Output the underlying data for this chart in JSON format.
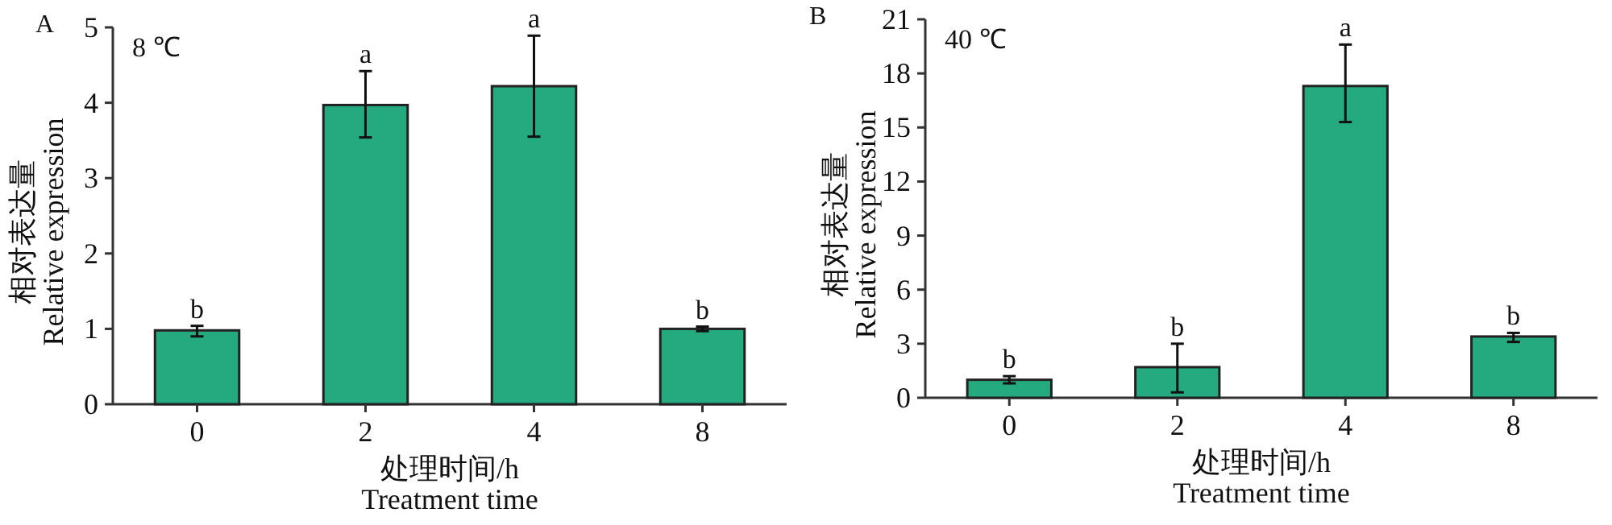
{
  "chart_data": [
    {
      "type": "bar",
      "title": "A",
      "xlabel": "处理时间/h\nTreatment time",
      "ylabel": "相对表达量\nRelative expression",
      "categories": [
        "0",
        "2",
        "4",
        "8"
      ],
      "values": [
        0.98,
        3.97,
        4.22,
        1.0
      ],
      "errors": [
        [
          0.9,
          1.04
        ],
        [
          3.54,
          4.42
        ],
        [
          3.55,
          4.89
        ],
        [
          0.97,
          1.03
        ]
      ],
      "color": "#25a97f",
      "ylim": [
        0,
        5
      ],
      "yticks": [
        0,
        1,
        2,
        3,
        4,
        5
      ],
      "annotations": [
        "8 ℃",
        {
          "text": "b",
          "x": "0",
          "y": 1.04
        },
        {
          "text": "a",
          "x": "2",
          "y": 4.42
        },
        {
          "text": "a",
          "x": "4",
          "y": 4.89
        },
        {
          "text": "b",
          "x": "8",
          "y": 1.03
        }
      ]
    },
    {
      "type": "bar",
      "title": "B",
      "xlabel": "处理时间/h\nTreatment time",
      "ylabel": "相对表达量\nRelative expression",
      "categories": [
        "0",
        "2",
        "4",
        "8"
      ],
      "values": [
        1.0,
        1.7,
        17.3,
        3.4
      ],
      "errors": [
        [
          0.8,
          1.2
        ],
        [
          0.3,
          3.0
        ],
        [
          15.3,
          19.6
        ],
        [
          3.1,
          3.6
        ]
      ],
      "color": "#25a97f",
      "ylim": [
        0,
        21
      ],
      "yticks": [
        0,
        3,
        6,
        9,
        12,
        15,
        18,
        21
      ],
      "annotations": [
        "40 ℃",
        {
          "text": "b",
          "x": "0",
          "y": 1.2
        },
        {
          "text": "b",
          "x": "2",
          "y": 3.0
        },
        {
          "text": "a",
          "x": "4",
          "y": 19.6
        },
        {
          "text": "b",
          "x": "8",
          "y": 3.6
        }
      ]
    }
  ]
}
